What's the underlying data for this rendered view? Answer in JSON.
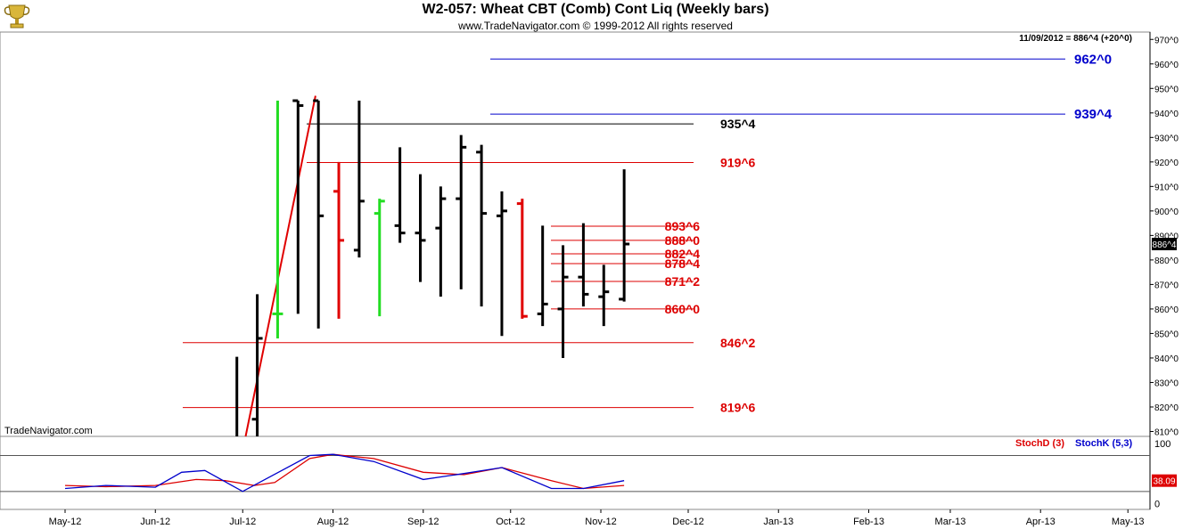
{
  "header": {
    "title": "W2-057:  Wheat CBT (Comb) Cont Liq  (Weekly bars)",
    "subtitle": "www.TradeNavigator.com © 1999-2012 All rights reserved",
    "last_value": "11/09/2012 = 886^4 (+20^0)",
    "watermark": "TradeNavigator.com",
    "logo_icon": "trophy-cup-icon"
  },
  "colors": {
    "price_bar": "#000000",
    "down_bar": "#e00000",
    "up_bar": "#22dd22",
    "red_level": "#dd0000",
    "blue_level": "#0000cc",
    "black_level": "#000000",
    "stoch_d": "#dd0000",
    "stoch_k": "#0000cc",
    "grid": "#e0e0e0"
  },
  "chart_data": [
    {
      "type": "ohlc",
      "title": "W2-057:  Wheat CBT (Comb) Cont Liq  (Weekly bars)",
      "y_axis_ticks": [
        "810^0",
        "820^0",
        "830^0",
        "840^0",
        "850^0",
        "860^0",
        "870^0",
        "880^0",
        "890^0",
        "900^0",
        "910^0",
        "920^0",
        "930^0",
        "940^0",
        "950^0",
        "960^0",
        "970^0"
      ],
      "ylim": [
        808,
        973
      ],
      "x_axis_ticks": [
        "May-12",
        "Jun-12",
        "Jul-12",
        "Aug-12",
        "Sep-12",
        "Oct-12",
        "Nov-12",
        "Dec-12",
        "Jan-13",
        "Feb-13",
        "Mar-13",
        "Apr-13",
        "May-13"
      ],
      "current_price_label": "886^4",
      "bars": [
        {
          "date": "2012-06-29",
          "open": null,
          "high": 840.5,
          "low": 808,
          "close": null,
          "color": "black"
        },
        {
          "date": "2012-07-06",
          "open": 815,
          "high": 866,
          "low": 808,
          "close": 848,
          "color": "black"
        },
        {
          "date": "2012-07-13",
          "open": 858,
          "high": 945,
          "low": 848,
          "close": 858,
          "color": "green"
        },
        {
          "date": "2012-07-20",
          "open": 945,
          "high": 945,
          "low": 858,
          "close": 943,
          "color": "black"
        },
        {
          "date": "2012-07-27",
          "open": 945,
          "high": 945,
          "low": 852,
          "close": 898,
          "color": "black"
        },
        {
          "date": "2012-08-03",
          "open": 908,
          "high": 920,
          "low": 856,
          "close": 888,
          "color": "red"
        },
        {
          "date": "2012-08-10",
          "open": 884,
          "high": 945,
          "low": 881,
          "close": 904,
          "color": "black"
        },
        {
          "date": "2012-08-17",
          "open": 899,
          "high": 905,
          "low": 857,
          "close": 904,
          "color": "green"
        },
        {
          "date": "2012-08-24",
          "open": 894,
          "high": 926,
          "low": 887,
          "close": 891,
          "color": "black"
        },
        {
          "date": "2012-08-31",
          "open": 891,
          "high": 915,
          "low": 871,
          "close": 888,
          "color": "black"
        },
        {
          "date": "2012-09-07",
          "open": 893,
          "high": 910,
          "low": 865,
          "close": 905,
          "color": "black"
        },
        {
          "date": "2012-09-14",
          "open": 905,
          "high": 931,
          "low": 868,
          "close": 926,
          "color": "black"
        },
        {
          "date": "2012-09-21",
          "open": 924,
          "high": 927,
          "low": 861,
          "close": 899,
          "color": "black"
        },
        {
          "date": "2012-09-28",
          "open": 898,
          "high": 908,
          "low": 849,
          "close": 900,
          "color": "black"
        },
        {
          "date": "2012-10-05",
          "open": 903,
          "high": 905,
          "low": 856,
          "close": 857,
          "color": "red"
        },
        {
          "date": "2012-10-12",
          "open": 858,
          "high": 894,
          "low": 853,
          "close": 862,
          "color": "black"
        },
        {
          "date": "2012-10-19",
          "open": 860,
          "high": 886,
          "low": 840,
          "close": 873,
          "color": "black"
        },
        {
          "date": "2012-10-26",
          "open": 873,
          "high": 895,
          "low": 861,
          "close": 866,
          "color": "black"
        },
        {
          "date": "2012-11-02",
          "open": 865,
          "high": 878,
          "low": 853,
          "close": 867,
          "color": "black"
        },
        {
          "date": "2012-11-09",
          "open": 864,
          "high": 917,
          "low": 863,
          "close": 886.5,
          "color": "black"
        }
      ],
      "levels": [
        {
          "label": "962^0",
          "value": 962,
          "color": "blue"
        },
        {
          "label": "939^4",
          "value": 939.5,
          "color": "blue"
        },
        {
          "label": "935^4",
          "value": 935.5,
          "color": "black"
        },
        {
          "label": "919^6",
          "value": 919.75,
          "color": "red"
        },
        {
          "label": "893^6",
          "value": 893.75,
          "color": "red"
        },
        {
          "label": "888^0",
          "value": 888,
          "color": "red"
        },
        {
          "label": "882^4",
          "value": 882.5,
          "color": "red"
        },
        {
          "label": "878^4",
          "value": 878.5,
          "color": "red"
        },
        {
          "label": "871^2",
          "value": 871.25,
          "color": "red"
        },
        {
          "label": "860^0",
          "value": 860,
          "color": "red"
        },
        {
          "label": "846^2",
          "value": 846.25,
          "color": "red"
        },
        {
          "label": "819^6",
          "value": 819.75,
          "color": "red"
        }
      ],
      "trend_line": {
        "from": {
          "date": "2012-07-02",
          "value": 808
        },
        "to": {
          "date": "2012-07-26",
          "value": 947
        },
        "color": "red"
      }
    },
    {
      "type": "line",
      "title": "Stochastic",
      "series": [
        {
          "name": "StochD (3)",
          "color": "red",
          "values": [
            {
              "date": "2012-05-01",
              "value": 30
            },
            {
              "date": "2012-05-15",
              "value": 28
            },
            {
              "date": "2012-06-01",
              "value": 30
            },
            {
              "date": "2012-06-15",
              "value": 40
            },
            {
              "date": "2012-06-25",
              "value": 38
            },
            {
              "date": "2012-07-05",
              "value": 30
            },
            {
              "date": "2012-07-12",
              "value": 35
            },
            {
              "date": "2012-07-24",
              "value": 75
            },
            {
              "date": "2012-08-01",
              "value": 82
            },
            {
              "date": "2012-08-15",
              "value": 75
            },
            {
              "date": "2012-09-01",
              "value": 52
            },
            {
              "date": "2012-09-15",
              "value": 48
            },
            {
              "date": "2012-09-28",
              "value": 60
            },
            {
              "date": "2012-10-15",
              "value": 38
            },
            {
              "date": "2012-10-26",
              "value": 25
            },
            {
              "date": "2012-11-09",
              "value": 30
            }
          ]
        },
        {
          "name": "StochK (5,3)",
          "color": "blue",
          "values": [
            {
              "date": "2012-05-01",
              "value": 25
            },
            {
              "date": "2012-05-15",
              "value": 30
            },
            {
              "date": "2012-06-01",
              "value": 27
            },
            {
              "date": "2012-06-10",
              "value": 52
            },
            {
              "date": "2012-06-18",
              "value": 55
            },
            {
              "date": "2012-07-01",
              "value": 20
            },
            {
              "date": "2012-07-24",
              "value": 80
            },
            {
              "date": "2012-08-01",
              "value": 82
            },
            {
              "date": "2012-08-15",
              "value": 70
            },
            {
              "date": "2012-09-01",
              "value": 40
            },
            {
              "date": "2012-09-15",
              "value": 50
            },
            {
              "date": "2012-09-28",
              "value": 60
            },
            {
              "date": "2012-10-15",
              "value": 25
            },
            {
              "date": "2012-10-26",
              "value": 25
            },
            {
              "date": "2012-11-09",
              "value": 38.09
            }
          ]
        }
      ],
      "legend": [
        "StochD (3)",
        "StochK (5,3)"
      ],
      "y_axis_ticks": [
        "0",
        "100"
      ],
      "ylim": [
        -10,
        112
      ],
      "reference_lines": [
        80,
        20
      ],
      "current_value_label": "38.09"
    }
  ]
}
